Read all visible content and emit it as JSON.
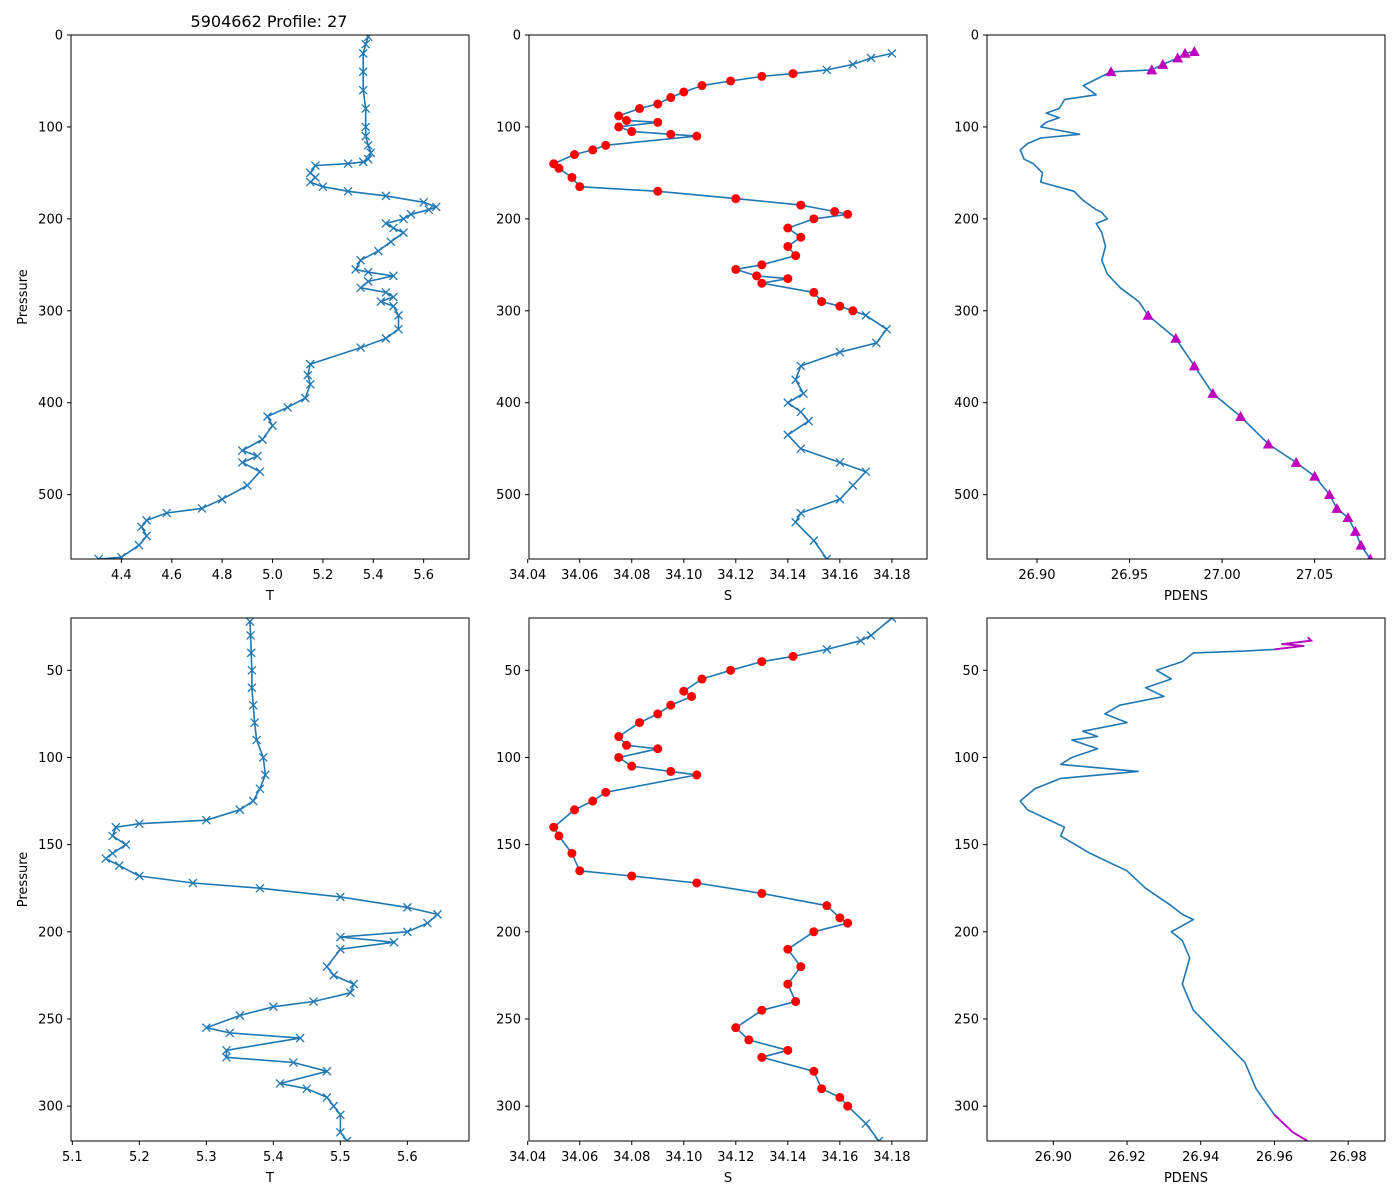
{
  "figure_title": "5904662 Profile: 27",
  "colors": {
    "line": "#1f77b4",
    "salt_marker": "#ff0000",
    "dens_highlight": "#bf00bf",
    "axes": "#000000",
    "background": "#ffffff"
  },
  "chart_data": [
    {
      "type": "line",
      "panel": "top-left",
      "title": "5904662 Profile: 27",
      "xlabel": "T",
      "ylabel": "Pressure",
      "xlim": [
        4.2,
        5.78
      ],
      "ylim": [
        570,
        0
      ],
      "xticks": [
        4.4,
        4.6,
        4.8,
        5.0,
        5.2,
        5.4,
        5.6
      ],
      "xtick_labels": [
        "4.4",
        "4.6",
        "4.8",
        "5.0",
        "5.2",
        "5.4",
        "5.6"
      ],
      "yticks": [
        0,
        100,
        200,
        300,
        400,
        500
      ],
      "ytick_labels": [
        "0",
        "100",
        "200",
        "300",
        "400",
        "500"
      ],
      "marker": "x",
      "series": [
        {
          "name": "T",
          "x": [
            5.38,
            5.37,
            5.36,
            5.36,
            5.36,
            5.37,
            5.37,
            5.37,
            5.38,
            5.39,
            5.38,
            5.36,
            5.3,
            5.17,
            5.15,
            5.17,
            5.15,
            5.2,
            5.3,
            5.45,
            5.6,
            5.65,
            5.62,
            5.55,
            5.52,
            5.45,
            5.48,
            5.52,
            5.47,
            5.42,
            5.35,
            5.33,
            5.38,
            5.48,
            5.38,
            5.35,
            5.45,
            5.48,
            5.43,
            5.48,
            5.5,
            5.5,
            5.45,
            5.35,
            5.15,
            5.14,
            5.15,
            5.13,
            5.06,
            4.98,
            5.0,
            4.96,
            4.88,
            4.94,
            4.88,
            4.95,
            4.9,
            4.8,
            4.72,
            4.58,
            4.5,
            4.48,
            4.5,
            4.47,
            4.4,
            4.31
          ],
          "y": [
            2,
            10,
            20,
            40,
            60,
            80,
            100,
            110,
            120,
            128,
            135,
            138,
            140,
            142,
            150,
            155,
            160,
            165,
            170,
            175,
            182,
            187,
            190,
            195,
            200,
            205,
            210,
            215,
            225,
            235,
            245,
            255,
            258,
            262,
            268,
            275,
            280,
            285,
            290,
            295,
            305,
            320,
            330,
            340,
            358,
            370,
            380,
            395,
            405,
            415,
            425,
            440,
            452,
            458,
            465,
            475,
            490,
            505,
            515,
            520,
            528,
            535,
            545,
            555,
            568,
            570
          ]
        }
      ]
    },
    {
      "type": "line",
      "panel": "top-middle",
      "xlabel": "S",
      "ylabel": "",
      "xlim": [
        34.0405,
        34.1935
      ],
      "ylim": [
        570,
        0
      ],
      "xticks": [
        34.04,
        34.06,
        34.08,
        34.1,
        34.12,
        34.14,
        34.16,
        34.18
      ],
      "xtick_labels": [
        "34.04",
        "34.06",
        "34.08",
        "34.10",
        "34.12",
        "34.14",
        "34.16",
        "34.18"
      ],
      "yticks": [
        0,
        100,
        200,
        300,
        400,
        500
      ],
      "ytick_labels": [
        "0",
        "100",
        "200",
        "300",
        "400",
        "500"
      ],
      "marker": "x",
      "highlight_marker": "o",
      "highlight_range": [
        40,
        300
      ],
      "series": [
        {
          "name": "S",
          "x": [
            34.18,
            34.172,
            34.165,
            34.155,
            34.142,
            34.13,
            34.118,
            34.107,
            34.1,
            34.095,
            34.09,
            34.083,
            34.075,
            34.078,
            34.09,
            34.075,
            34.08,
            34.095,
            34.105,
            34.07,
            34.065,
            34.058,
            34.05,
            34.052,
            34.057,
            34.06,
            34.09,
            34.12,
            34.145,
            34.158,
            34.163,
            34.15,
            34.14,
            34.145,
            34.14,
            34.143,
            34.13,
            34.12,
            34.128,
            34.14,
            34.13,
            34.15,
            34.153,
            34.16,
            34.165,
            34.17,
            34.178,
            34.174,
            34.16,
            34.145,
            34.143,
            34.146,
            34.14,
            34.145,
            34.148,
            34.14,
            34.145,
            34.16,
            34.17,
            34.165,
            34.16,
            34.145,
            34.143,
            34.15,
            34.155
          ],
          "y": [
            20,
            25,
            32,
            38,
            42,
            45,
            50,
            55,
            62,
            68,
            75,
            80,
            88,
            93,
            95,
            100,
            105,
            108,
            110,
            120,
            125,
            130,
            140,
            145,
            155,
            165,
            170,
            178,
            185,
            192,
            195,
            200,
            210,
            220,
            230,
            240,
            250,
            255,
            262,
            265,
            270,
            280,
            290,
            295,
            300,
            305,
            320,
            335,
            345,
            360,
            375,
            390,
            400,
            410,
            420,
            435,
            450,
            465,
            475,
            490,
            505,
            520,
            530,
            550,
            570
          ]
        }
      ]
    },
    {
      "type": "line",
      "panel": "top-right",
      "xlabel": "PDENS",
      "ylabel": "",
      "xlim": [
        26.873,
        27.088
      ],
      "ylim": [
        570,
        0
      ],
      "xticks": [
        26.9,
        26.95,
        27.0,
        27.05
      ],
      "xtick_labels": [
        "26.90",
        "26.95",
        "27.00",
        "27.05"
      ],
      "yticks": [
        0,
        100,
        200,
        300,
        400,
        500
      ],
      "ytick_labels": [
        "0",
        "100",
        "200",
        "300",
        "400",
        "500"
      ],
      "highlight_marker": "^",
      "highlight_ranges": [
        [
          18,
          40
        ],
        [
          305,
          570
        ]
      ],
      "series": [
        {
          "name": "PDENS",
          "x": [
            26.985,
            26.98,
            26.976,
            26.968,
            26.962,
            26.94,
            26.935,
            26.925,
            26.932,
            26.915,
            26.912,
            26.905,
            26.912,
            26.905,
            26.902,
            26.923,
            26.902,
            26.895,
            26.891,
            26.893,
            26.898,
            26.903,
            26.902,
            26.92,
            26.925,
            26.932,
            26.935,
            26.938,
            26.932,
            26.935,
            26.937,
            26.935,
            26.938,
            26.945,
            26.955,
            26.96,
            26.975,
            26.985,
            26.995,
            27.01,
            27.025,
            27.04,
            27.05,
            27.058,
            27.062,
            27.068,
            27.072,
            27.075,
            27.08
          ],
          "y": [
            18,
            20,
            25,
            32,
            38,
            40,
            45,
            55,
            65,
            70,
            80,
            85,
            90,
            95,
            100,
            108,
            112,
            118,
            125,
            135,
            140,
            150,
            160,
            170,
            180,
            190,
            193,
            200,
            205,
            215,
            230,
            245,
            260,
            275,
            290,
            305,
            330,
            360,
            390,
            415,
            445,
            465,
            480,
            500,
            515,
            525,
            540,
            555,
            570
          ]
        }
      ]
    },
    {
      "type": "line",
      "panel": "bottom-left",
      "xlabel": "T",
      "ylabel": "Pressure",
      "xlim": [
        5.098,
        5.692
      ],
      "ylim": [
        320,
        20
      ],
      "xticks": [
        5.1,
        5.2,
        5.3,
        5.4,
        5.5,
        5.6
      ],
      "xtick_labels": [
        "5.1",
        "5.2",
        "5.3",
        "5.4",
        "5.5",
        "5.6"
      ],
      "yticks": [
        50,
        100,
        150,
        200,
        250,
        300
      ],
      "ytick_labels": [
        "50",
        "100",
        "150",
        "200",
        "250",
        "300"
      ],
      "marker": "x",
      "series": [
        {
          "name": "T",
          "x": [
            5.365,
            5.366,
            5.367,
            5.368,
            5.368,
            5.37,
            5.372,
            5.375,
            5.385,
            5.388,
            5.38,
            5.37,
            5.35,
            5.3,
            5.2,
            5.165,
            5.16,
            5.18,
            5.16,
            5.15,
            5.17,
            5.2,
            5.28,
            5.38,
            5.5,
            5.6,
            5.645,
            5.63,
            5.6,
            5.5,
            5.58,
            5.5,
            5.48,
            5.49,
            5.52,
            5.515,
            5.46,
            5.4,
            5.35,
            5.3,
            5.335,
            5.44,
            5.33,
            5.33,
            5.43,
            5.48,
            5.41,
            5.45,
            5.48,
            5.49,
            5.5,
            5.5,
            5.51
          ],
          "y": [
            22,
            30,
            40,
            50,
            60,
            70,
            80,
            90,
            100,
            110,
            118,
            125,
            130,
            136,
            138,
            140,
            145,
            150,
            155,
            158,
            162,
            168,
            172,
            175,
            180,
            186,
            190,
            195,
            200,
            203,
            206,
            210,
            220,
            225,
            230,
            235,
            240,
            243,
            248,
            255,
            258,
            261,
            268,
            272,
            275,
            280,
            287,
            290,
            295,
            300,
            305,
            315,
            320
          ]
        }
      ]
    },
    {
      "type": "line",
      "panel": "bottom-middle",
      "xlabel": "S",
      "ylabel": "",
      "xlim": [
        34.0405,
        34.1935
      ],
      "ylim": [
        320,
        20
      ],
      "xticks": [
        34.04,
        34.06,
        34.08,
        34.1,
        34.12,
        34.14,
        34.16,
        34.18
      ],
      "xtick_labels": [
        "34.04",
        "34.06",
        "34.08",
        "34.10",
        "34.12",
        "34.14",
        "34.16",
        "34.18"
      ],
      "yticks": [
        50,
        100,
        150,
        200,
        250,
        300
      ],
      "ytick_labels": [
        "50",
        "100",
        "150",
        "200",
        "250",
        "300"
      ],
      "marker": "x",
      "highlight_marker": "o",
      "highlight_range": [
        40,
        300
      ],
      "series": [
        {
          "name": "S",
          "x": [
            34.18,
            34.172,
            34.168,
            34.155,
            34.142,
            34.13,
            34.118,
            34.107,
            34.1,
            34.103,
            34.095,
            34.09,
            34.083,
            34.075,
            34.078,
            34.09,
            34.075,
            34.08,
            34.095,
            34.105,
            34.07,
            34.065,
            34.058,
            34.05,
            34.052,
            34.057,
            34.06,
            34.08,
            34.105,
            34.13,
            34.155,
            34.16,
            34.163,
            34.15,
            34.14,
            34.145,
            34.14,
            34.143,
            34.13,
            34.12,
            34.125,
            34.14,
            34.13,
            34.15,
            34.153,
            34.16,
            34.163,
            34.17,
            34.175
          ],
          "y": [
            20,
            30,
            33,
            38,
            42,
            45,
            50,
            55,
            62,
            65,
            70,
            75,
            80,
            88,
            93,
            95,
            100,
            105,
            108,
            110,
            120,
            125,
            130,
            140,
            145,
            155,
            165,
            168,
            172,
            178,
            185,
            192,
            195,
            200,
            210,
            220,
            230,
            240,
            245,
            255,
            262,
            268,
            272,
            280,
            290,
            295,
            300,
            310,
            320
          ]
        }
      ]
    },
    {
      "type": "line",
      "panel": "bottom-right",
      "xlabel": "PDENS",
      "ylabel": "",
      "xlim": [
        26.882,
        26.99
      ],
      "ylim": [
        320,
        20
      ],
      "xticks": [
        26.9,
        26.92,
        26.94,
        26.96,
        26.98
      ],
      "xtick_labels": [
        "26.90",
        "26.92",
        "26.94",
        "26.96",
        "26.98"
      ],
      "yticks": [
        50,
        100,
        150,
        200,
        250,
        300
      ],
      "ytick_labels": [
        "50",
        "100",
        "150",
        "200",
        "250",
        "300"
      ],
      "highlight_ranges": [
        [
          30,
          38
        ],
        [
          305,
          320
        ]
      ],
      "series": [
        {
          "name": "PDENS",
          "x": [
            26.969,
            26.97,
            26.962,
            26.968,
            26.96,
            26.952,
            26.938,
            26.935,
            26.928,
            26.932,
            26.925,
            26.93,
            26.918,
            26.914,
            26.92,
            26.908,
            26.912,
            26.905,
            26.912,
            26.905,
            26.902,
            26.923,
            26.902,
            26.895,
            26.891,
            26.893,
            26.898,
            26.903,
            26.902,
            26.91,
            26.92,
            26.925,
            26.932,
            26.935,
            26.938,
            26.932,
            26.935,
            26.937,
            26.935,
            26.938,
            26.945,
            26.952,
            26.955,
            26.96,
            26.965,
            26.969
          ],
          "y": [
            31,
            33,
            35,
            36,
            38,
            39,
            40,
            45,
            50,
            55,
            60,
            65,
            70,
            75,
            80,
            85,
            88,
            90,
            95,
            100,
            104,
            108,
            112,
            118,
            125,
            130,
            135,
            140,
            145,
            155,
            165,
            175,
            185,
            190,
            193,
            200,
            205,
            215,
            230,
            245,
            260,
            275,
            290,
            305,
            315,
            320
          ]
        }
      ]
    }
  ]
}
